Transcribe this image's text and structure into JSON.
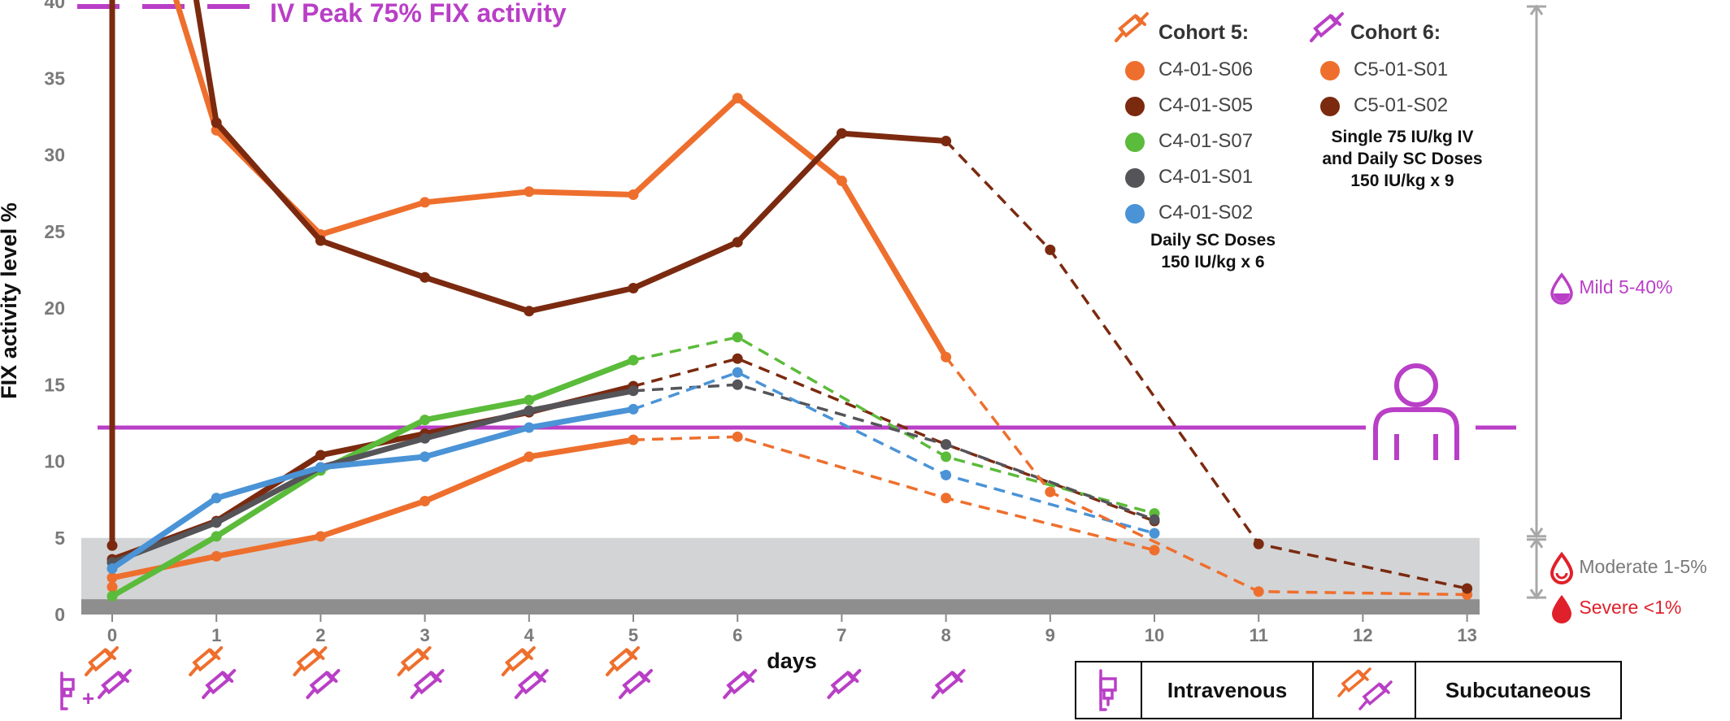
{
  "chart_data": {
    "type": "line",
    "title": "",
    "xlabel": "days",
    "ylabel": "FIX activity level %",
    "xlim": [
      0,
      13
    ],
    "ylim": [
      0,
      40
    ],
    "x_ticks": [
      0,
      1,
      2,
      3,
      4,
      5,
      6,
      7,
      8,
      9,
      10,
      11,
      12,
      13
    ],
    "y_ticks": [
      0,
      5,
      10,
      15,
      20,
      25,
      30,
      35,
      40
    ],
    "reference_line": {
      "label": "IV Peak 75% FIX activity",
      "style": "dashed",
      "color": "#b93fc6"
    },
    "normal_line": {
      "value": 12.2,
      "color": "#b93fc6"
    },
    "bands": [
      {
        "label": "Mild 5-40%",
        "from": 5,
        "to": 40,
        "color": "#b93fc6"
      },
      {
        "label": "Moderate 1-5%",
        "from": 1,
        "to": 5,
        "color": "#7a7a7a"
      },
      {
        "label": "Severe <1%",
        "from": 0,
        "to": 1,
        "color": "#e0202a"
      }
    ],
    "series": [
      {
        "name": "C4-01-S06",
        "cohort": 5,
        "color": "#ee6f2d",
        "solid": [
          [
            0,
            1.8
          ],
          [
            0,
            2.4
          ],
          [
            1,
            3.8
          ],
          [
            2,
            5.1
          ],
          [
            3,
            7.4
          ],
          [
            4,
            10.3
          ],
          [
            5,
            11.4
          ]
        ],
        "dashed": [
          [
            5,
            11.4
          ],
          [
            6,
            11.6
          ],
          [
            8,
            7.6
          ],
          [
            10,
            4.2
          ]
        ]
      },
      {
        "name": "C4-01-S05",
        "cohort": 5,
        "color": "#7b2a10",
        "solid": [
          [
            0,
            3.6
          ],
          [
            1,
            6.1
          ],
          [
            2,
            10.4
          ],
          [
            3,
            11.8
          ],
          [
            4,
            13.2
          ],
          [
            5,
            14.9
          ]
        ],
        "dashed": [
          [
            5,
            14.9
          ],
          [
            6,
            16.7
          ],
          [
            8,
            11.1
          ],
          [
            10,
            6.1
          ]
        ]
      },
      {
        "name": "C4-01-S07",
        "cohort": 5,
        "color": "#5bbb3a",
        "solid": [
          [
            0,
            1.2
          ],
          [
            1,
            5.1
          ],
          [
            2,
            9.4
          ],
          [
            3,
            12.7
          ],
          [
            4,
            14.0
          ],
          [
            5,
            16.6
          ]
        ],
        "dashed": [
          [
            5,
            16.6
          ],
          [
            6,
            18.1
          ],
          [
            8,
            10.3
          ],
          [
            10,
            6.6
          ]
        ]
      },
      {
        "name": "C4-01-S01",
        "cohort": 5,
        "color": "#545459",
        "solid": [
          [
            0,
            3.4
          ],
          [
            1,
            6.0
          ],
          [
            2,
            9.6
          ],
          [
            3,
            11.5
          ],
          [
            4,
            13.3
          ],
          [
            5,
            14.6
          ]
        ],
        "dashed": [
          [
            5,
            14.6
          ],
          [
            6,
            15.0
          ],
          [
            8,
            11.1
          ],
          [
            10,
            6.2
          ]
        ]
      },
      {
        "name": "C4-01-S02",
        "cohort": 5,
        "color": "#4a93d6",
        "solid": [
          [
            0,
            3.0
          ],
          [
            1,
            7.6
          ],
          [
            2,
            9.6
          ],
          [
            3,
            10.3
          ],
          [
            4,
            12.2
          ],
          [
            5,
            13.4
          ]
        ],
        "dashed": [
          [
            5,
            13.4
          ],
          [
            6,
            15.8
          ],
          [
            8,
            9.1
          ],
          [
            10,
            5.3
          ]
        ]
      },
      {
        "name": "C5-01-S01",
        "cohort": 6,
        "color": "#ee6f2d",
        "solid": [
          [
            0.6,
            40.5
          ],
          [
            1,
            31.6
          ],
          [
            2,
            24.8
          ],
          [
            3,
            26.9
          ],
          [
            4,
            27.6
          ],
          [
            5,
            27.4
          ],
          [
            6,
            33.7
          ],
          [
            7,
            28.3
          ],
          [
            8,
            16.8
          ]
        ],
        "dashed": [
          [
            8,
            16.8
          ],
          [
            9,
            8.0
          ],
          [
            11,
            1.5
          ],
          [
            13,
            1.3
          ]
        ]
      },
      {
        "name": "C5-01-S02",
        "cohort": 6,
        "color": "#7b2a10",
        "solid": [
          [
            0,
            4.5
          ],
          [
            0,
            40.5
          ],
          [
            0.8,
            40.5
          ],
          [
            1,
            32.1
          ],
          [
            2,
            24.4
          ],
          [
            3,
            22.0
          ],
          [
            4,
            19.8
          ],
          [
            5,
            21.3
          ],
          [
            6,
            24.3
          ],
          [
            7,
            31.4
          ],
          [
            8,
            30.9
          ]
        ],
        "dashed": [
          [
            8,
            30.9
          ],
          [
            9,
            23.8
          ],
          [
            11,
            4.6
          ],
          [
            13,
            1.7
          ]
        ]
      }
    ]
  },
  "legend": {
    "cohort5_title": "Cohort  5:",
    "cohort6_title": "Cohort  6:",
    "cohort5_items": [
      "C4-01-S06",
      "C4-01-S05",
      "C4-01-S07",
      "C4-01-S01",
      "C4-01-S02"
    ],
    "cohort6_items": [
      "C5-01-S01",
      "C5-01-S02"
    ],
    "cohort5_note_1": "Daily SC Doses",
    "cohort5_note_2": "150 IU/kg x 6",
    "cohort6_note_1": "Single 75 IU/kg IV",
    "cohort6_note_2": "and Daily SC Doses",
    "cohort6_note_3": "150 IU/kg x 9"
  },
  "dosing": {
    "day0": "IV + SC",
    "cohort5_sc_days": [
      0,
      1,
      2,
      3,
      4,
      5
    ],
    "cohort6_sc_days": [
      0,
      1,
      2,
      3,
      4,
      5,
      6,
      7,
      8
    ],
    "plus": "+"
  },
  "route_legend": {
    "iv_label": "Intravenous",
    "sc_label": "Subcutaneous"
  },
  "colors": {
    "purple": "#b93fc6",
    "orange": "#ee6f2d",
    "band_light": "#d3d4d6",
    "band_dark": "#8e8e8e",
    "bracket": "#a8a8a8",
    "severe": "#e0202a"
  }
}
